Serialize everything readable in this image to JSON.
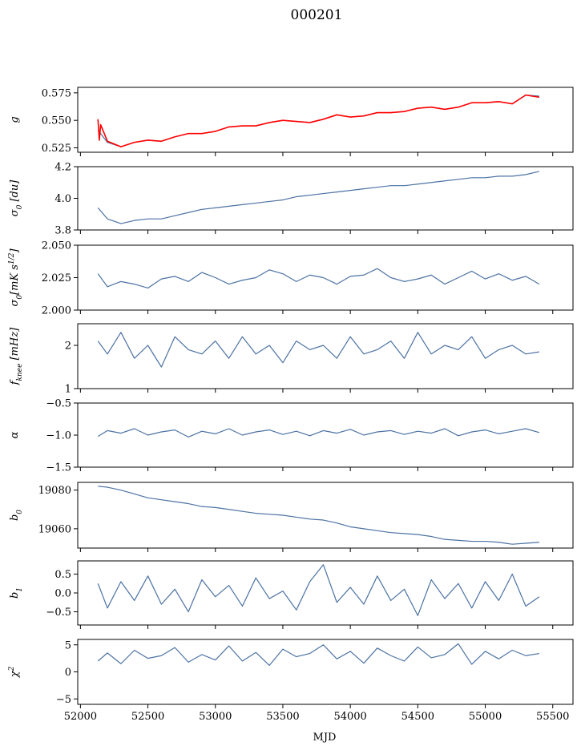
{
  "figure": {
    "title": "000201",
    "xlabel": "MJD",
    "xlim": [
      51980,
      55650
    ],
    "xticks": [
      52000,
      52500,
      53000,
      53500,
      54000,
      54500,
      55000,
      55500
    ],
    "xtick_labels": [
      "52000",
      "52500",
      "53000",
      "53500",
      "54000",
      "54500",
      "55000",
      "55500"
    ]
  },
  "colors": {
    "series": "#4c72a4",
    "overlay": "#ff0000",
    "axes": "#000000",
    "background": "#ffffff"
  },
  "chart_data": [
    {
      "type": "line",
      "ylabel": "g",
      "ylim": [
        0.521,
        0.58
      ],
      "yticks": [
        0.525,
        0.55,
        0.575
      ],
      "ytick_labels": [
        "0.525",
        "0.550",
        "0.575"
      ],
      "series": [
        {
          "color": "#4c72a4",
          "x": [
            52130,
            52200,
            52300,
            52400,
            52500,
            52600,
            52700,
            52800,
            52900,
            53000,
            53100,
            53200,
            53300,
            53400,
            53500,
            53600,
            53700,
            53800,
            53900,
            54000,
            54100,
            54200,
            54300,
            54400,
            54500,
            54600,
            54700,
            54800,
            54900,
            55000,
            55100,
            55200,
            55300,
            55400
          ],
          "y": [
            0.541,
            0.53,
            0.526,
            0.53,
            0.532,
            0.531,
            0.535,
            0.538,
            0.538,
            0.54,
            0.544,
            0.545,
            0.545,
            0.548,
            0.55,
            0.549,
            0.548,
            0.551,
            0.555,
            0.553,
            0.554,
            0.557,
            0.557,
            0.558,
            0.561,
            0.562,
            0.56,
            0.562,
            0.566,
            0.566,
            0.567,
            0.565,
            0.573,
            0.572
          ]
        },
        {
          "color": "#ff0000",
          "x": [
            52130,
            52140,
            52150,
            52200,
            52300,
            52400,
            52500,
            52600,
            52700,
            52800,
            52900,
            53000,
            53100,
            53200,
            53300,
            53400,
            53500,
            53600,
            53700,
            53800,
            53900,
            54000,
            54100,
            54200,
            54300,
            54400,
            54500,
            54600,
            54700,
            54800,
            54900,
            55000,
            55100,
            55200,
            55300,
            55400
          ],
          "y": [
            0.551,
            0.532,
            0.546,
            0.531,
            0.526,
            0.53,
            0.532,
            0.531,
            0.535,
            0.538,
            0.538,
            0.54,
            0.544,
            0.545,
            0.545,
            0.548,
            0.55,
            0.549,
            0.548,
            0.551,
            0.555,
            0.553,
            0.554,
            0.557,
            0.557,
            0.558,
            0.561,
            0.562,
            0.56,
            0.562,
            0.566,
            0.566,
            0.567,
            0.565,
            0.573,
            0.571
          ]
        }
      ]
    },
    {
      "type": "line",
      "ylabel": "σ0 [du]",
      "ylim": [
        3.8,
        4.2
      ],
      "yticks": [
        3.8,
        4.0,
        4.2
      ],
      "ytick_labels": [
        "3.8",
        "4.0",
        "4.2"
      ],
      "series": [
        {
          "color": "#4c72a4",
          "x": [
            52130,
            52200,
            52300,
            52400,
            52500,
            52600,
            52700,
            52800,
            52900,
            53000,
            53100,
            53200,
            53300,
            53400,
            53500,
            53600,
            53700,
            53800,
            53900,
            54000,
            54100,
            54200,
            54300,
            54400,
            54500,
            54600,
            54700,
            54800,
            54900,
            55000,
            55100,
            55200,
            55300,
            55400
          ],
          "y": [
            3.94,
            3.87,
            3.84,
            3.86,
            3.87,
            3.87,
            3.89,
            3.91,
            3.93,
            3.94,
            3.95,
            3.96,
            3.97,
            3.98,
            3.99,
            4.01,
            4.02,
            4.03,
            4.04,
            4.05,
            4.06,
            4.07,
            4.08,
            4.08,
            4.09,
            4.1,
            4.11,
            4.12,
            4.13,
            4.13,
            4.14,
            4.14,
            4.15,
            4.17
          ]
        }
      ]
    },
    {
      "type": "line",
      "ylabel": "σ0[mK s1/2]",
      "ylim": [
        2.0,
        2.05
      ],
      "yticks": [
        2.0,
        2.025,
        2.05
      ],
      "ytick_labels": [
        "2.000",
        "2.025",
        "2.050"
      ],
      "series": [
        {
          "color": "#4c72a4",
          "x": [
            52130,
            52200,
            52300,
            52400,
            52500,
            52600,
            52700,
            52800,
            52900,
            53000,
            53100,
            53200,
            53300,
            53400,
            53500,
            53600,
            53700,
            53800,
            53900,
            54000,
            54100,
            54200,
            54300,
            54400,
            54500,
            54600,
            54700,
            54800,
            54900,
            55000,
            55100,
            55200,
            55300,
            55400
          ],
          "y": [
            2.028,
            2.018,
            2.022,
            2.02,
            2.017,
            2.024,
            2.026,
            2.022,
            2.029,
            2.025,
            2.02,
            2.023,
            2.025,
            2.031,
            2.028,
            2.022,
            2.027,
            2.025,
            2.02,
            2.026,
            2.027,
            2.032,
            2.025,
            2.022,
            2.024,
            2.027,
            2.02,
            2.025,
            2.03,
            2.024,
            2.028,
            2.023,
            2.026,
            2.02
          ]
        }
      ]
    },
    {
      "type": "line",
      "ylabel": "fknee [mHz]",
      "ylim": [
        1,
        2.5
      ],
      "yticks": [
        1,
        2
      ],
      "ytick_labels": [
        "1",
        "2"
      ],
      "series": [
        {
          "color": "#4c72a4",
          "x": [
            52130,
            52200,
            52300,
            52400,
            52500,
            52600,
            52700,
            52800,
            52900,
            53000,
            53100,
            53200,
            53300,
            53400,
            53500,
            53600,
            53700,
            53800,
            53900,
            54000,
            54100,
            54200,
            54300,
            54400,
            54500,
            54600,
            54700,
            54800,
            54900,
            55000,
            55100,
            55200,
            55300,
            55400
          ],
          "y": [
            2.1,
            1.8,
            2.3,
            1.7,
            2.0,
            1.5,
            2.2,
            1.9,
            1.8,
            2.1,
            1.7,
            2.2,
            1.8,
            2.0,
            1.6,
            2.1,
            1.9,
            2.0,
            1.7,
            2.2,
            1.8,
            1.9,
            2.1,
            1.7,
            2.3,
            1.8,
            2.0,
            1.9,
            2.2,
            1.7,
            1.9,
            2.0,
            1.8,
            1.85
          ]
        }
      ]
    },
    {
      "type": "line",
      "ylabel": "α",
      "ylim": [
        -1.5,
        -0.5
      ],
      "yticks": [
        -1.5,
        -1.0,
        -0.5
      ],
      "ytick_labels": [
        "−1.5",
        "−1.0",
        "−0.5"
      ],
      "series": [
        {
          "color": "#4c72a4",
          "x": [
            52130,
            52200,
            52300,
            52400,
            52500,
            52600,
            52700,
            52800,
            52900,
            53000,
            53100,
            53200,
            53300,
            53400,
            53500,
            53600,
            53700,
            53800,
            53900,
            54000,
            54100,
            54200,
            54300,
            54400,
            54500,
            54600,
            54700,
            54800,
            54900,
            55000,
            55100,
            55200,
            55300,
            55400
          ],
          "y": [
            -1.02,
            -0.93,
            -0.97,
            -0.9,
            -1.0,
            -0.95,
            -0.92,
            -1.03,
            -0.94,
            -0.98,
            -0.9,
            -1.0,
            -0.95,
            -0.92,
            -0.99,
            -0.94,
            -1.01,
            -0.93,
            -0.97,
            -0.91,
            -1.0,
            -0.95,
            -0.93,
            -0.99,
            -0.94,
            -0.97,
            -0.9,
            -1.01,
            -0.95,
            -0.92,
            -0.98,
            -0.94,
            -0.9,
            -0.96
          ]
        }
      ]
    },
    {
      "type": "line",
      "ylabel": "b0",
      "ylim": [
        19050,
        19084
      ],
      "yticks": [
        19060,
        19080
      ],
      "ytick_labels": [
        "19060",
        "19080"
      ],
      "series": [
        {
          "color": "#4c72a4",
          "x": [
            52130,
            52200,
            52300,
            52400,
            52500,
            52600,
            52700,
            52800,
            52900,
            53000,
            53100,
            53200,
            53300,
            53400,
            53500,
            53600,
            53700,
            53800,
            53900,
            54000,
            54100,
            54200,
            54300,
            54400,
            54500,
            54600,
            54700,
            54800,
            54900,
            55000,
            55100,
            55200,
            55300,
            55400
          ],
          "y": [
            19082,
            19081.5,
            19080,
            19078,
            19076,
            19075,
            19074,
            19073,
            19071.5,
            19071,
            19070,
            19069,
            19068,
            19067.5,
            19067,
            19066,
            19065,
            19064.5,
            19063,
            19061,
            19060,
            19059,
            19058,
            19057.5,
            19057,
            19056,
            19054.5,
            19054,
            19053.5,
            19053.5,
            19053,
            19052,
            19052.5,
            19053
          ]
        }
      ]
    },
    {
      "type": "line",
      "ylabel": "b1",
      "ylim": [
        -0.85,
        0.85
      ],
      "yticks": [
        -0.5,
        0.0,
        0.5
      ],
      "ytick_labels": [
        "−0.5",
        "0.0",
        "0.5"
      ],
      "series": [
        {
          "color": "#4c72a4",
          "x": [
            52130,
            52200,
            52300,
            52400,
            52500,
            52600,
            52700,
            52800,
            52900,
            53000,
            53100,
            53200,
            53300,
            53400,
            53500,
            53600,
            53700,
            53800,
            53900,
            54000,
            54100,
            54200,
            54300,
            54400,
            54500,
            54600,
            54700,
            54800,
            54900,
            55000,
            55100,
            55200,
            55300,
            55400
          ],
          "y": [
            0.25,
            -0.4,
            0.3,
            -0.2,
            0.45,
            -0.3,
            0.1,
            -0.5,
            0.35,
            -0.1,
            0.2,
            -0.35,
            0.4,
            -0.15,
            0.05,
            -0.45,
            0.3,
            0.75,
            -0.25,
            0.15,
            -0.3,
            0.45,
            -0.2,
            0.1,
            -0.6,
            0.35,
            -0.15,
            0.25,
            -0.4,
            0.3,
            -0.2,
            0.5,
            -0.35,
            -0.1
          ]
        }
      ]
    },
    {
      "type": "line",
      "ylabel": "χ2",
      "ylim": [
        -6,
        6
      ],
      "yticks": [
        -5,
        0,
        5
      ],
      "ytick_labels": [
        "−5",
        "0",
        "5"
      ],
      "series": [
        {
          "color": "#4c72a4",
          "x": [
            52130,
            52200,
            52300,
            52400,
            52500,
            52600,
            52700,
            52800,
            52900,
            53000,
            53100,
            53200,
            53300,
            53400,
            53500,
            53600,
            53700,
            53800,
            53900,
            54000,
            54100,
            54200,
            54300,
            54400,
            54500,
            54600,
            54700,
            54800,
            54900,
            55000,
            55100,
            55200,
            55300,
            55400
          ],
          "y": [
            2.0,
            3.5,
            1.5,
            4.0,
            2.5,
            3.0,
            4.5,
            1.8,
            3.2,
            2.2,
            4.8,
            2.0,
            3.6,
            1.2,
            4.2,
            2.8,
            3.4,
            5.0,
            2.4,
            3.8,
            1.6,
            4.4,
            3.0,
            2.0,
            4.6,
            2.6,
            3.2,
            5.2,
            1.4,
            3.8,
            2.4,
            4.0,
            3.0,
            3.4
          ]
        }
      ]
    }
  ]
}
